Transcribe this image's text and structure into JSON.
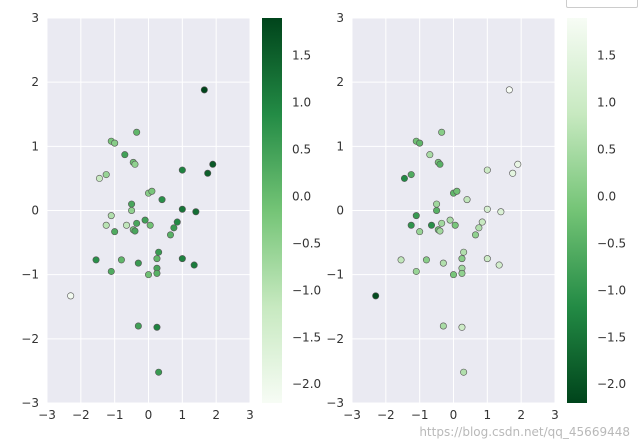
{
  "chart_data": [
    {
      "type": "scatter",
      "colormap": "Greens",
      "colorbar_reversed": false,
      "xlim": [
        -3,
        3
      ],
      "ylim": [
        -3,
        3
      ],
      "x_ticks": [
        "−3",
        "−2",
        "−1",
        "0",
        "1",
        "2",
        "3"
      ],
      "y_ticks": [
        "−3",
        "−2",
        "−1",
        "0",
        "1",
        "2",
        "3"
      ],
      "colorbar_ticks": [
        "−2.0",
        "−1.5",
        "−1.0",
        "−0.5",
        "0.0",
        "0.5",
        "1.0",
        "1.5"
      ],
      "colorbar_range": [
        -2.2,
        1.9
      ],
      "grid": true,
      "x": [
        1.65,
        -0.35,
        -1.1,
        -1.0,
        -0.7,
        -0.45,
        -0.4,
        -1.25,
        -1.45,
        0.0,
        0.1,
        -0.5,
        0.4,
        -0.5,
        -1.1,
        -1.25,
        -0.65,
        -0.45,
        -0.4,
        -1.0,
        -0.8,
        -0.1,
        0.05,
        1.0,
        1.4,
        0.85,
        0.75,
        -1.55,
        -0.3,
        0.3,
        -1.1,
        0.25,
        0.25,
        1.0,
        -0.3,
        0.0,
        1.35,
        0.65,
        0.25,
        -0.35,
        0.25,
        0.3,
        1.75,
        1.9,
        1.0,
        -2.3
      ],
      "y": [
        1.88,
        1.22,
        1.08,
        1.05,
        0.87,
        0.75,
        0.72,
        0.56,
        0.5,
        0.27,
        0.3,
        0.1,
        0.17,
        0.0,
        -0.08,
        -0.23,
        -0.23,
        -0.3,
        -0.32,
        -0.33,
        -0.77,
        -0.15,
        -0.23,
        0.02,
        -0.02,
        -0.18,
        -0.27,
        -0.77,
        -0.82,
        -0.65,
        -0.95,
        -0.75,
        -0.9,
        -0.75,
        -1.8,
        -1.0,
        -0.85,
        -0.38,
        -0.98,
        -0.2,
        -1.82,
        -2.52,
        0.58,
        0.72,
        0.63,
        -1.33
      ],
      "c": [
        1.9,
        0.1,
        -0.2,
        -0.4,
        0.5,
        -0.1,
        -0.5,
        -0.6,
        -1.2,
        -0.4,
        -0.2,
        0.4,
        0.8,
        -0.5,
        -0.9,
        -1.0,
        -1.1,
        -0.2,
        0.4,
        0.3,
        0.1,
        0.5,
        -0.1,
        1.2,
        1.3,
        0.9,
        0.6,
        0.8,
        0.6,
        0.6,
        0.3,
        0.1,
        0.4,
        1.0,
        0.5,
        -0.1,
        1.1,
        0.2,
        0.2,
        0.4,
        1.0,
        0.6,
        1.5,
        1.6,
        1.0,
        -2.1
      ]
    },
    {
      "type": "scatter",
      "colormap": "Greens_r",
      "colorbar_reversed": true,
      "xlim": [
        -3,
        3
      ],
      "ylim": [
        -3,
        3
      ],
      "x_ticks": [
        "−3",
        "−2",
        "−1",
        "0",
        "1",
        "2",
        "3"
      ],
      "y_ticks": [
        "−3",
        "−2",
        "−1",
        "0",
        "1",
        "2",
        "3"
      ],
      "colorbar_ticks": [
        "−2.0",
        "−1.5",
        "−1.0",
        "−0.5",
        "0.0",
        "0.5",
        "1.0",
        "1.5"
      ],
      "colorbar_range": [
        -2.2,
        1.9
      ],
      "grid": true,
      "x": [
        1.65,
        -0.35,
        -1.1,
        -1.0,
        -0.7,
        -0.45,
        -0.4,
        -1.25,
        -1.45,
        0.0,
        0.1,
        -0.5,
        0.4,
        -0.5,
        -1.1,
        -1.25,
        -0.65,
        -0.45,
        -0.4,
        -1.0,
        -0.8,
        -0.1,
        0.05,
        1.0,
        1.4,
        0.85,
        0.75,
        -1.55,
        -0.3,
        0.3,
        -1.1,
        0.25,
        0.25,
        1.0,
        -0.3,
        0.0,
        1.35,
        0.65,
        0.25,
        -0.35,
        0.25,
        0.3,
        1.75,
        1.9,
        1.0,
        -2.3
      ],
      "y": [
        1.88,
        1.22,
        1.08,
        1.05,
        0.87,
        0.75,
        0.72,
        0.56,
        0.5,
        0.27,
        0.3,
        0.1,
        0.17,
        0.0,
        -0.08,
        -0.23,
        -0.23,
        -0.3,
        -0.32,
        -0.33,
        -0.77,
        -0.15,
        -0.23,
        0.02,
        -0.02,
        -0.18,
        -0.27,
        -0.77,
        -0.82,
        -0.65,
        -0.95,
        -0.75,
        -0.9,
        -0.75,
        -1.8,
        -1.0,
        -0.85,
        -0.38,
        -0.98,
        -0.2,
        -1.82,
        -2.52,
        0.58,
        0.72,
        0.63,
        -1.33
      ],
      "c": [
        1.9,
        0.1,
        -0.2,
        -0.4,
        0.5,
        -0.1,
        -0.5,
        -0.6,
        -1.2,
        -0.4,
        -0.2,
        0.4,
        0.8,
        -0.5,
        -0.9,
        -1.0,
        -1.1,
        -0.2,
        0.4,
        0.3,
        0.1,
        0.5,
        -0.1,
        1.2,
        1.3,
        0.9,
        0.6,
        0.8,
        0.6,
        0.6,
        0.3,
        0.1,
        0.4,
        1.0,
        0.5,
        -0.1,
        1.1,
        0.2,
        0.2,
        0.4,
        1.0,
        0.6,
        1.5,
        1.6,
        1.0,
        -2.1
      ]
    }
  ],
  "watermark": "https://blog.csdn.net/qq_45669448",
  "colors": {
    "axes_bg": "#eaeaf2",
    "grid": "#ffffff",
    "green_light": "#f7fcf5",
    "green_dark": "#00441b"
  }
}
